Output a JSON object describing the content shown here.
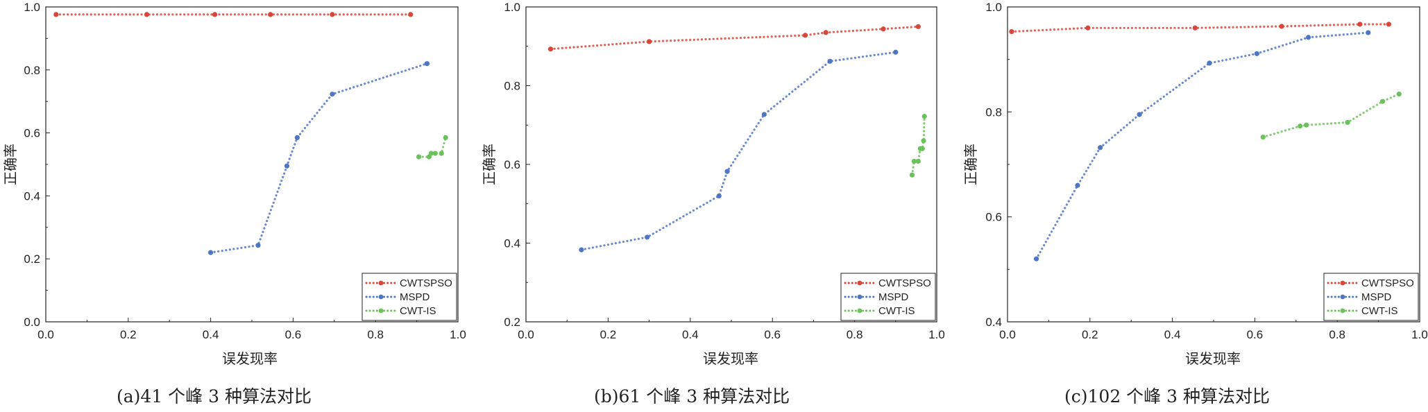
{
  "series_colors": {
    "CWTSPSO": "#d9473a",
    "MSPD": "#4f76c3",
    "CWT-IS": "#6cc25a"
  },
  "chart_data": [
    {
      "type": "line",
      "caption": "(a)41 个峰 3 种算法对比",
      "xlabel": "误发现率",
      "ylabel": "正确率",
      "xlim": [
        0,
        1.0
      ],
      "ylim": [
        0,
        1.0
      ],
      "xticks": [
        "0.0",
        "0.2",
        "0.4",
        "0.6",
        "0.8",
        "1.0"
      ],
      "yticks": [
        "0.0",
        "0.2",
        "0.4",
        "0.6",
        "0.8",
        "1.0"
      ],
      "legend_position": "bottom-right",
      "series": [
        {
          "name": "CWTSPSO",
          "x": [
            0.025,
            0.245,
            0.41,
            0.545,
            0.695,
            0.885
          ],
          "y": [
            0.976,
            0.976,
            0.976,
            0.976,
            0.976,
            0.976
          ]
        },
        {
          "name": "MSPD",
          "x": [
            0.4,
            0.515,
            0.585,
            0.61,
            0.695,
            0.925
          ],
          "y": [
            0.22,
            0.243,
            0.495,
            0.585,
            0.723,
            0.82
          ]
        },
        {
          "name": "CWT-IS",
          "x": [
            0.905,
            0.93,
            0.935,
            0.945,
            0.96,
            0.97
          ],
          "y": [
            0.524,
            0.524,
            0.535,
            0.535,
            0.535,
            0.585
          ]
        }
      ]
    },
    {
      "type": "line",
      "caption": "(b)61 个峰 3 种算法对比",
      "xlabel": "误发现率",
      "ylabel": "正确率",
      "xlim": [
        0,
        1.0
      ],
      "ylim": [
        0.2,
        1.0
      ],
      "xticks": [
        "0.0",
        "0.2",
        "0.4",
        "0.6",
        "0.8",
        "1.0"
      ],
      "yticks": [
        "0.2",
        "0.4",
        "0.6",
        "0.8",
        "1.0"
      ],
      "legend_position": "bottom-right",
      "series": [
        {
          "name": "CWTSPSO",
          "x": [
            0.06,
            0.3,
            0.68,
            0.73,
            0.87,
            0.955
          ],
          "y": [
            0.893,
            0.912,
            0.928,
            0.935,
            0.944,
            0.95
          ]
        },
        {
          "name": "MSPD",
          "x": [
            0.135,
            0.295,
            0.47,
            0.49,
            0.58,
            0.74,
            0.9
          ],
          "y": [
            0.383,
            0.415,
            0.52,
            0.582,
            0.727,
            0.862,
            0.885
          ]
        },
        {
          "name": "CWT-IS",
          "x": [
            0.94,
            0.945,
            0.955,
            0.96,
            0.965,
            0.968,
            0.97
          ],
          "y": [
            0.573,
            0.608,
            0.608,
            0.64,
            0.64,
            0.66,
            0.722
          ]
        }
      ]
    },
    {
      "type": "line",
      "caption": "(c)102 个峰 3 种算法对比",
      "xlabel": "误发现率",
      "ylabel": "正确率",
      "xlim": [
        0,
        1.0
      ],
      "ylim": [
        0.4,
        1.0
      ],
      "xticks": [
        "0.0",
        "0.2",
        "0.4",
        "0.6",
        "0.8",
        "1.0"
      ],
      "yticks": [
        "0.4",
        "0.6",
        "0.8",
        "1.0"
      ],
      "legend_position": "bottom-right",
      "series": [
        {
          "name": "CWTSPSO",
          "x": [
            0.01,
            0.195,
            0.455,
            0.665,
            0.855,
            0.925
          ],
          "y": [
            0.953,
            0.96,
            0.96,
            0.963,
            0.967,
            0.967
          ]
        },
        {
          "name": "MSPD",
          "x": [
            0.07,
            0.17,
            0.225,
            0.32,
            0.49,
            0.605,
            0.73,
            0.875
          ],
          "y": [
            0.52,
            0.66,
            0.732,
            0.795,
            0.893,
            0.911,
            0.942,
            0.951
          ]
        },
        {
          "name": "CWT-IS",
          "x": [
            0.62,
            0.71,
            0.725,
            0.825,
            0.91,
            0.95
          ],
          "y": [
            0.752,
            0.773,
            0.775,
            0.78,
            0.82,
            0.834
          ]
        }
      ]
    }
  ]
}
